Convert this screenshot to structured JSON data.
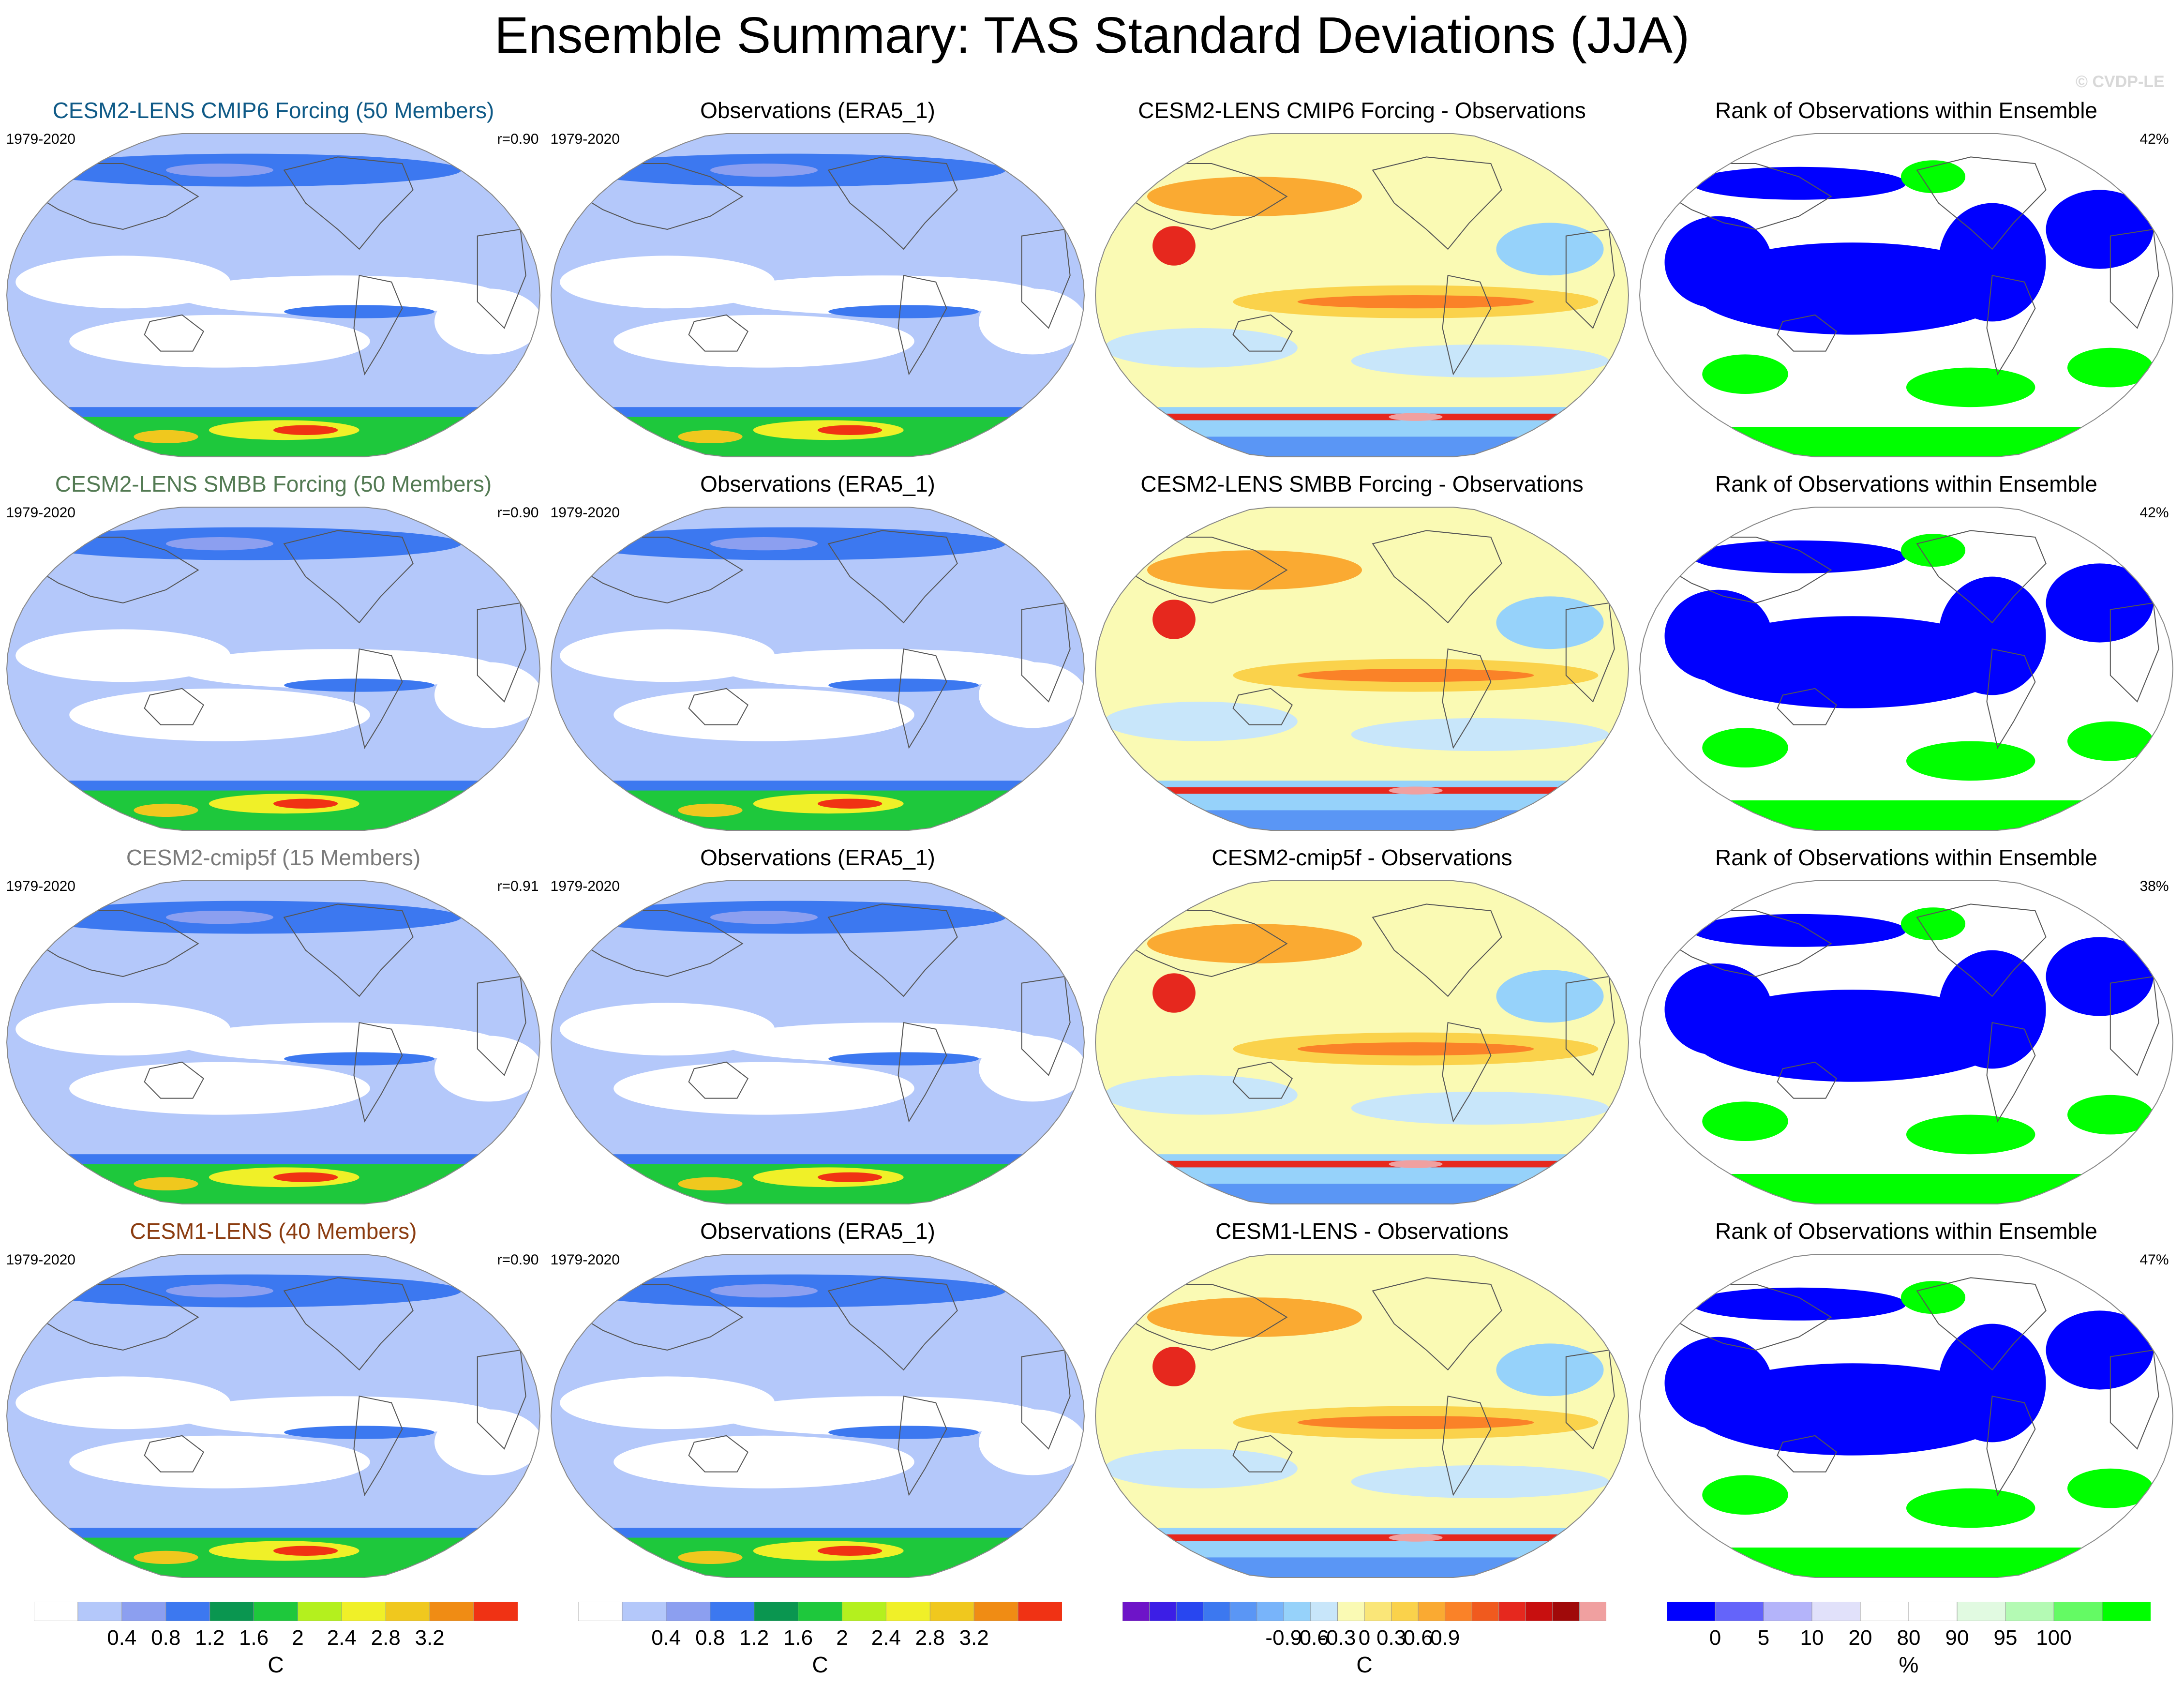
{
  "title": "Ensemble Summary: TAS Standard Deviations (JJA)",
  "watermark": "© CVDP-LE",
  "colors": {
    "model_title_0": "#0f5a87",
    "model_title_1": "#537a53",
    "model_title_2": "#7a7a7a",
    "model_title_3": "#8b3c10"
  },
  "rows": [
    {
      "model_title": "CESM2-LENS CMIP6 Forcing (50 Members)",
      "model_years": "1979-2020",
      "model_r": "r=0.90",
      "obs_title": "Observations (ERA5_1)",
      "obs_years": "1979-2020",
      "diff_title": "CESM2-LENS CMIP6 Forcing - Observations",
      "rank_title": "Rank of Observations within Ensemble",
      "rank_pct": "42%"
    },
    {
      "model_title": "CESM2-LENS SMBB Forcing (50 Members)",
      "model_years": "1979-2020",
      "model_r": "r=0.90",
      "obs_title": "Observations (ERA5_1)",
      "obs_years": "1979-2020",
      "diff_title": "CESM2-LENS SMBB Forcing - Observations",
      "rank_title": "Rank of Observations within Ensemble",
      "rank_pct": "42%"
    },
    {
      "model_title": "CESM2-cmip5f (15 Members)",
      "model_years": "1979-2020",
      "model_r": "r=0.91",
      "obs_title": "Observations (ERA5_1)",
      "obs_years": "1979-2020",
      "diff_title": "CESM2-cmip5f - Observations",
      "rank_title": "Rank of Observations within Ensemble",
      "rank_pct": "38%"
    },
    {
      "model_title": "CESM1-LENS (40 Members)",
      "model_years": "1979-2020",
      "model_r": "r=0.90",
      "obs_title": "Observations (ERA5_1)",
      "obs_years": "1979-2020",
      "diff_title": "CESM1-LENS - Observations",
      "rank_title": "Rank of Observations within Ensemble",
      "rank_pct": "47%"
    }
  ],
  "chart_data": [
    {
      "type": "heatmap",
      "panel": "colorbar-std",
      "unit": "C",
      "tick_labels": [
        "0.4",
        "0.8",
        "1.2",
        "1.6",
        "2",
        "2.4",
        "2.8",
        "3.2"
      ],
      "levels": [
        0.4,
        0.8,
        1.2,
        1.6,
        2.0,
        2.4,
        2.8,
        3.2
      ],
      "colors": [
        "#ffffff",
        "#b4c8fa",
        "#8c9ff0",
        "#3c78f0",
        "#0a9650",
        "#1ec83c",
        "#b4f01e",
        "#f0f028",
        "#f0c81e",
        "#f08c14",
        "#f03214"
      ]
    },
    {
      "type": "heatmap",
      "panel": "colorbar-diff",
      "unit": "C",
      "tick_labels": [
        "-0.9",
        "-0.6",
        "-0.3",
        "0",
        "0.3",
        "0.6",
        "0.9"
      ],
      "levels": [
        -0.9,
        -0.6,
        -0.3,
        0,
        0.3,
        0.6,
        0.9
      ],
      "colors": [
        "#6e14c8",
        "#3c1ee6",
        "#2846f0",
        "#3c78f0",
        "#5a96f5",
        "#78b4fa",
        "#96d2fa",
        "#c8e6fa",
        "#fafab4",
        "#fae678",
        "#fad24b",
        "#faaa32",
        "#fa8228",
        "#f05a1e",
        "#e6281e",
        "#c80f0f",
        "#a00a0a",
        "#f0a0a0"
      ]
    },
    {
      "type": "heatmap",
      "panel": "colorbar-rank",
      "unit": "%",
      "tick_labels": [
        "0",
        "5",
        "10",
        "20",
        "80",
        "90",
        "95",
        "100"
      ],
      "levels": [
        0,
        5,
        10,
        20,
        80,
        90,
        95,
        100
      ],
      "colors": [
        "#0000ff",
        "#6464fa",
        "#b4b4fa",
        "#e1e1fa",
        "#ffffff",
        "#ffffff",
        "#e1fae1",
        "#b4fab4",
        "#64fa64",
        "#00ff00"
      ]
    }
  ]
}
